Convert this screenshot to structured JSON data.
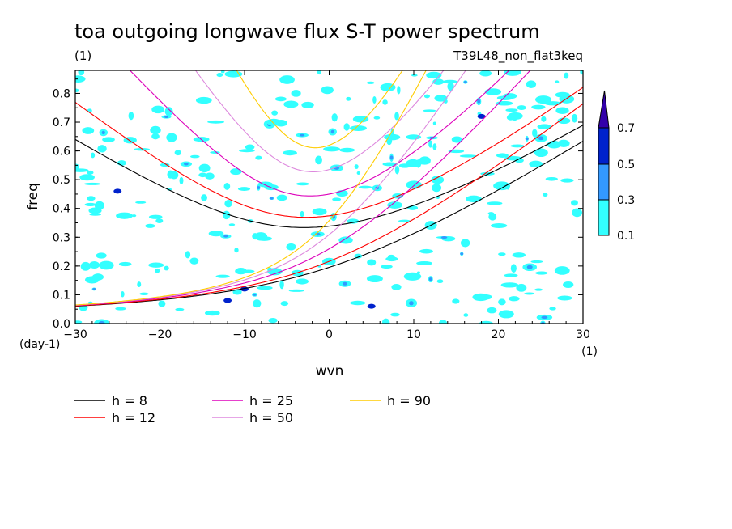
{
  "header": {
    "title": "toa outgoing longwave flux S-T power spectrum",
    "units_label": "(1)",
    "run_name": "T39L48_non_flat3keq"
  },
  "colors": {
    "contour_01": "#33ffff",
    "contour_03": "#3399ff",
    "contour_05": "#0022cc",
    "contour_07": "#3300aa"
  },
  "chart_data": {
    "type": "contour",
    "title": "toa outgoing longwave flux S-T power spectrum",
    "xlabel": "wvn",
    "ylabel": "freq",
    "x_units": "(1)",
    "y_units": "(day-1)",
    "xlim": [
      -30,
      30
    ],
    "ylim": [
      0.0,
      0.88
    ],
    "xticks": [
      -30,
      -20,
      -10,
      0,
      10,
      20,
      30
    ],
    "yticks": [
      0.0,
      0.1,
      0.2,
      0.3,
      0.4,
      0.5,
      0.6,
      0.7,
      0.8
    ],
    "xtick_labels": [
      "−30",
      "−20",
      "−10",
      "0",
      "10",
      "20",
      "30"
    ],
    "ytick_labels": [
      "0.0",
      "0.1",
      "0.2",
      "0.3",
      "0.4",
      "0.5",
      "0.6",
      "0.7",
      "0.8"
    ],
    "colorbar": {
      "levels": [
        0.1,
        0.3,
        0.5,
        0.7
      ],
      "labels": [
        "0.1",
        "0.3",
        "0.5",
        "0.7"
      ],
      "colors": [
        "#33ffff",
        "#3399ff",
        "#0022cc",
        "#3300aa"
      ]
    },
    "series": [
      {
        "name": "h = 8",
        "h": 8,
        "color": "#000000",
        "curves": "inertia-gravity n=1 and Rossby-gravity"
      },
      {
        "name": "h = 12",
        "h": 12,
        "color": "#ff0000",
        "curves": "inertia-gravity n=1 and Rossby-gravity"
      },
      {
        "name": "h = 25",
        "h": 25,
        "color": "#dd00bb",
        "curves": "inertia-gravity n=1 and Rossby-gravity"
      },
      {
        "name": "h = 50",
        "h": 50,
        "color": "#dd88dd",
        "curves": "inertia-gravity n=1 and Rossby-gravity"
      },
      {
        "name": "h = 90",
        "h": 90,
        "color": "#ffcc00",
        "curves": "inertia-gravity n=1 and Rossby-gravity"
      }
    ],
    "legend": [
      {
        "label": "h =  8",
        "color": "#000000"
      },
      {
        "label": "h = 12",
        "color": "#ff0000"
      },
      {
        "label": "h = 25",
        "color": "#dd00bb"
      },
      {
        "label": "h = 50",
        "color": "#dd88dd"
      },
      {
        "label": "h = 90",
        "color": "#ffcc00"
      }
    ]
  }
}
